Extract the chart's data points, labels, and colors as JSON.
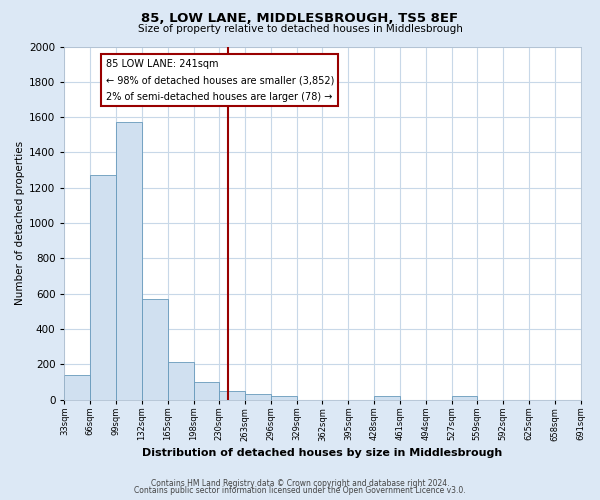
{
  "title": "85, LOW LANE, MIDDLESBROUGH, TS5 8EF",
  "subtitle": "Size of property relative to detached houses in Middlesbrough",
  "xlabel": "Distribution of detached houses by size in Middlesbrough",
  "ylabel": "Number of detached properties",
  "bar_edges": [
    33,
    66,
    99,
    132,
    165,
    198,
    230,
    263,
    296,
    329,
    362,
    395,
    428,
    461,
    494,
    527,
    559,
    592,
    625,
    658,
    691
  ],
  "bar_heights": [
    140,
    1270,
    1570,
    570,
    215,
    100,
    50,
    30,
    20,
    0,
    0,
    0,
    20,
    0,
    0,
    20,
    0,
    0,
    0,
    0
  ],
  "bar_color": "#d0e0f0",
  "bar_edgecolor": "#6699bb",
  "vline_x": 241,
  "vline_color": "#990000",
  "annotation_title": "85 LOW LANE: 241sqm",
  "annotation_line1": "← 98% of detached houses are smaller (3,852)",
  "annotation_line2": "2% of semi-detached houses are larger (78) →",
  "annotation_box_edgecolor": "#990000",
  "annotation_box_facecolor": "#ffffff",
  "ylim": [
    0,
    2000
  ],
  "yticks": [
    0,
    200,
    400,
    600,
    800,
    1000,
    1200,
    1400,
    1600,
    1800,
    2000
  ],
  "xtick_labels": [
    "33sqm",
    "66sqm",
    "99sqm",
    "132sqm",
    "165sqm",
    "198sqm",
    "230sqm",
    "263sqm",
    "296sqm",
    "329sqm",
    "362sqm",
    "395sqm",
    "428sqm",
    "461sqm",
    "494sqm",
    "527sqm",
    "559sqm",
    "592sqm",
    "625sqm",
    "658sqm",
    "691sqm"
  ],
  "plot_bg_color": "#ffffff",
  "outer_bg_color": "#dce8f5",
  "grid_color": "#c8d8e8",
  "footer1": "Contains HM Land Registry data © Crown copyright and database right 2024.",
  "footer2": "Contains public sector information licensed under the Open Government Licence v3.0."
}
